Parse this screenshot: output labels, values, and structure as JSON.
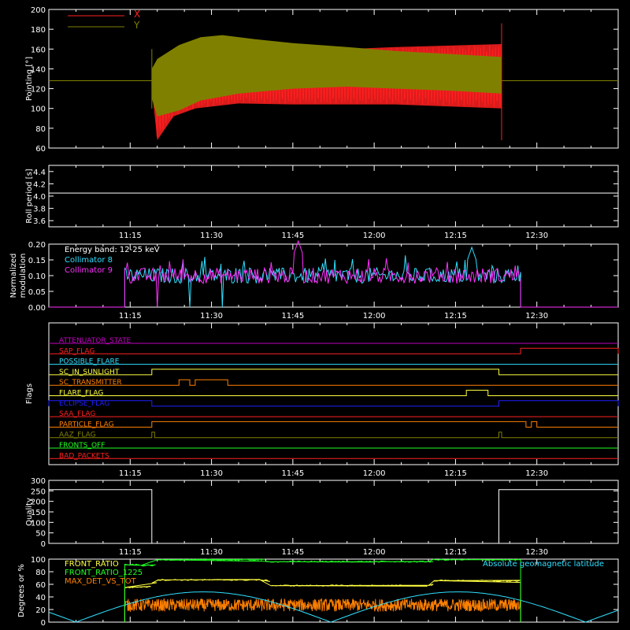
{
  "colors": {
    "background": "#000000",
    "foreground": "#ffffff",
    "red": "#ff2020",
    "olive": "#808000",
    "cyan": "#30e0ff",
    "magenta": "#ff30ff",
    "yellow": "#ffff40",
    "orange": "#ff8000",
    "green": "#20ff20",
    "blue": "#2020ff",
    "purple": "#c000c0"
  },
  "time_ticks": [
    "11:15",
    "11:30",
    "11:45",
    "12:00",
    "12:15",
    "12:30"
  ],
  "chart_data": [
    {
      "type": "line",
      "ylabel": "Pointing [°]",
      "ylim": [
        60,
        200
      ],
      "yticks": [
        "60",
        "80",
        "100",
        "120",
        "140",
        "160",
        "180",
        "200"
      ],
      "xticks": [],
      "legend_position": "top-left",
      "series": [
        {
          "name": "X",
          "color": "#ff2020",
          "baseline": 128,
          "active_start": "11:19",
          "active_end": "12:23",
          "upper_envelope": [
            [
              19,
              120
            ],
            [
              20,
              142
            ],
            [
              25,
              150
            ],
            [
              35,
              153
            ],
            [
              45,
              157
            ],
            [
              55,
              160
            ],
            [
              64,
              162
            ],
            [
              83.5,
              165
            ]
          ],
          "lower_envelope": [
            [
              19,
              120
            ],
            [
              20,
              68
            ],
            [
              23,
              92
            ],
            [
              27,
              100
            ],
            [
              35,
              105
            ],
            [
              45,
              104
            ],
            [
              55,
              104
            ],
            [
              64,
              104
            ],
            [
              83.5,
              100
            ]
          ]
        },
        {
          "name": "Y",
          "color": "#808000",
          "baseline": 128,
          "active_start": "11:19",
          "active_end": "12:23",
          "upper_envelope": [
            [
              19,
              140
            ],
            [
              20,
              150
            ],
            [
              24,
              164
            ],
            [
              28,
              172
            ],
            [
              32,
              174
            ],
            [
              38,
              170
            ],
            [
              45,
              166
            ],
            [
              55,
              162
            ],
            [
              64,
              158
            ],
            [
              74,
              155
            ],
            [
              83.5,
              152
            ]
          ],
          "lower_envelope": [
            [
              19,
              110
            ],
            [
              20,
              92
            ],
            [
              24,
              98
            ],
            [
              28,
              108
            ],
            [
              35,
              115
            ],
            [
              45,
              120
            ],
            [
              55,
              122
            ],
            [
              64,
              120
            ],
            [
              74,
              118
            ],
            [
              83.5,
              115
            ]
          ]
        }
      ]
    },
    {
      "type": "line",
      "ylabel": "Roll period [s]",
      "ylim": [
        3.5,
        4.5
      ],
      "yticks": [
        "3.6",
        "3.8",
        "4.0",
        "4.2",
        "4.4"
      ],
      "xticks": [
        "11:15",
        "11:30",
        "11:45",
        "12:00",
        "12:15",
        "12:30"
      ],
      "series": [
        {
          "name": "",
          "color": "#ffffff",
          "value": 4.05
        }
      ]
    },
    {
      "type": "line",
      "ylabel": "Normalized modulation",
      "ylim": [
        0,
        0.2
      ],
      "yticks": [
        "0.00",
        "0.05",
        "0.10",
        "0.15",
        "0.20"
      ],
      "xticks": [
        "11:15",
        "11:30",
        "11:45",
        "12:00",
        "12:15",
        "12:30"
      ],
      "legend_position": "top-left",
      "legend_title": "Energy band: 12-25 keV",
      "series": [
        {
          "name": "Collimator 8",
          "color": "#30e0ff",
          "active_start": "11:14",
          "active_end": "12:27",
          "typical": 0.1,
          "dropouts": [
            "11:26",
            "11:32"
          ],
          "peak": 0.19,
          "peak_time": "12:18"
        },
        {
          "name": "Collimator 9",
          "color": "#ff30ff",
          "active_start": "11:14",
          "active_end": "12:27",
          "typical": 0.1,
          "dropouts": [
            "11:20"
          ],
          "peak": 0.21,
          "peak_time": "11:46"
        }
      ]
    },
    {
      "type": "line",
      "ylabel": "Flags",
      "xticks": [
        "11:15",
        "11:30",
        "11:45",
        "12:00",
        "12:15",
        "12:30"
      ],
      "series": [
        {
          "name": "ATTENUATOR_STATE",
          "color": "#c000c0",
          "states": []
        },
        {
          "name": "SAP_FLAG",
          "color": "#ff2020",
          "states": [
            [
              "12:27",
              "12:45"
            ]
          ]
        },
        {
          "name": "POSSIBLE_FLARE",
          "color": "#30e0ff",
          "states": []
        },
        {
          "name": "SC_IN_SUNLIGHT",
          "color": "#ffff40",
          "states": [
            [
              "11:19",
              "12:23"
            ]
          ]
        },
        {
          "name": "SC_TRANSMITTER",
          "color": "#ff8000",
          "states": [
            [
              "11:24",
              "11:26"
            ],
            [
              "11:27",
              "11:33"
            ]
          ]
        },
        {
          "name": "FLARE_FLAG",
          "color": "#ffff40",
          "states": [
            [
              "12:17",
              "12:21"
            ]
          ]
        },
        {
          "name": "ECLIPSE_FLAG",
          "color": "#2020ff",
          "states": [
            [
              "11:00",
              "11:19"
            ],
            [
              "12:23",
              "12:45"
            ]
          ]
        },
        {
          "name": "SAA_FLAG",
          "color": "#ff2020",
          "states": []
        },
        {
          "name": "PARTICLE_FLAG",
          "color": "#ff8000",
          "states": [
            [
              "11:19",
              "12:28"
            ],
            [
              "12:29",
              "12:30"
            ]
          ]
        },
        {
          "name": "AAZ_FLAG",
          "color": "#808000",
          "states": [
            [
              "11:19",
              "11:19.5"
            ],
            [
              "12:23",
              "12:23.5"
            ]
          ]
        },
        {
          "name": "FRONTS_OFF",
          "color": "#20ff20",
          "states": []
        },
        {
          "name": "BAD_PACKETS",
          "color": "#ff2020",
          "states": []
        }
      ]
    },
    {
      "type": "line",
      "ylabel": "Quality",
      "ylim": [
        0,
        300
      ],
      "yticks": [
        "0",
        "50",
        "100",
        "150",
        "200",
        "250",
        "300"
      ],
      "xticks": [
        "11:15",
        "11:30",
        "11:45",
        "12:00",
        "12:15",
        "12:30"
      ],
      "series": [
        {
          "name": "",
          "color": "#ffffff",
          "steps": [
            [
              "11:00",
              256
            ],
            [
              "11:19",
              0
            ],
            [
              "12:23",
              256
            ],
            [
              "12:45",
              256
            ]
          ]
        }
      ]
    },
    {
      "type": "line",
      "ylabel": "Degrees or %",
      "ylim": [
        0,
        100
      ],
      "yticks": [
        "0",
        "20",
        "40",
        "60",
        "80",
        "100"
      ],
      "xticks": [],
      "series": [
        {
          "name": "FRONT_RATIO",
          "color": "#ffff40",
          "steps": [
            [
              "11:14",
              0
            ],
            [
              "11:14",
              55
            ],
            [
              "11:19",
              62
            ],
            [
              "11:20",
              67
            ],
            [
              "11:39",
              67
            ],
            [
              "11:41",
              58
            ],
            [
              "12:10",
              58
            ],
            [
              "12:11",
              66
            ],
            [
              "12:27",
              63
            ],
            [
              "12:27",
              0
            ]
          ]
        },
        {
          "name": "FRONT_RATIO_1225",
          "color": "#20ff20",
          "steps": [
            [
              "11:14",
              0
            ],
            [
              "11:14",
              91
            ],
            [
              "11:17",
              90
            ],
            [
              "11:20",
              99
            ],
            [
              "11:40",
              96
            ],
            [
              "12:00",
              96
            ],
            [
              "12:10",
              96
            ],
            [
              "12:11",
              99
            ],
            [
              "12:27",
              99
            ],
            [
              "12:27",
              0
            ]
          ]
        },
        {
          "name": "MAX_DET_VS_TOT",
          "color": "#ff8000",
          "active_start": "11:14",
          "active_end": "12:27",
          "typical": 27
        },
        {
          "name": "Absolute geomagnetic latitude",
          "color": "#30e0ff",
          "points": [
            [
              "11:00",
              18
            ],
            [
              "11:05",
              0
            ],
            [
              "11:33",
              48
            ],
            [
              "11:52",
              0
            ],
            [
              "12:20",
              48
            ],
            [
              "12:45",
              20
            ]
          ]
        }
      ],
      "legend_position": "top-left"
    }
  ]
}
